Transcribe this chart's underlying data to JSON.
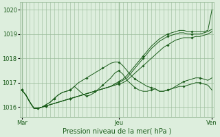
{
  "title": "Pression niveau de la mer( hPa )",
  "bg_color": "#ddeedd",
  "grid_color": "#99bb99",
  "line_color": "#1a5c1a",
  "tick_label_color": "#1a5c1a",
  "ylim": [
    1015.6,
    1020.3
  ],
  "yticks": [
    1016,
    1017,
    1018,
    1019,
    1020
  ],
  "xlabel_days": [
    "Mar",
    "Jeu",
    "Ven"
  ],
  "xlabel_xpos": [
    0.0,
    24.0,
    47.0
  ],
  "total_steps": 48,
  "series": {
    "s1": [
      1016.7,
      1016.5,
      1016.2,
      1015.95,
      1015.95,
      1016.0,
      1016.05,
      1016.1,
      1016.15,
      1016.2,
      1016.25,
      1016.3,
      1016.35,
      1016.4,
      1016.45,
      1016.5,
      1016.55,
      1016.6,
      1016.65,
      1016.7,
      1016.75,
      1016.8,
      1016.85,
      1016.95,
      1017.05,
      1017.15,
      1017.3,
      1017.5,
      1017.7,
      1017.9,
      1018.1,
      1018.3,
      1018.5,
      1018.65,
      1018.8,
      1018.9,
      1019.0,
      1019.05,
      1019.1,
      1019.15,
      1019.15,
      1019.1,
      1019.1,
      1019.1,
      1019.1,
      1019.1,
      1019.15,
      1020.0
    ],
    "s2": [
      1016.7,
      1016.5,
      1016.2,
      1015.95,
      1015.95,
      1016.0,
      1016.05,
      1016.1,
      1016.15,
      1016.2,
      1016.25,
      1016.3,
      1016.35,
      1016.4,
      1016.45,
      1016.5,
      1016.55,
      1016.6,
      1016.65,
      1016.7,
      1016.75,
      1016.8,
      1016.85,
      1016.95,
      1017.0,
      1017.1,
      1017.2,
      1017.4,
      1017.6,
      1017.8,
      1018.0,
      1018.2,
      1018.4,
      1018.55,
      1018.7,
      1018.8,
      1018.9,
      1018.95,
      1019.0,
      1019.05,
      1019.05,
      1019.0,
      1019.0,
      1019.0,
      1019.0,
      1019.05,
      1019.1,
      1019.2
    ],
    "s3": [
      1016.7,
      1016.5,
      1016.2,
      1015.95,
      1015.95,
      1016.0,
      1016.1,
      1016.2,
      1016.35,
      1016.5,
      1016.6,
      1016.65,
      1016.7,
      1016.85,
      1016.7,
      1016.55,
      1016.45,
      1016.5,
      1016.6,
      1016.75,
      1016.9,
      1017.05,
      1017.2,
      1017.4,
      1017.5,
      1017.35,
      1017.1,
      1016.95,
      1016.8,
      1016.7,
      1016.65,
      1016.65,
      1016.7,
      1016.75,
      1016.65,
      1016.65,
      1016.7,
      1016.75,
      1016.8,
      1016.85,
      1016.85,
      1016.9,
      1016.95,
      1017.0,
      1017.0,
      1016.95,
      1016.9,
      1016.7
    ],
    "s4": [
      1016.7,
      1016.5,
      1016.2,
      1015.95,
      1015.95,
      1016.0,
      1016.1,
      1016.2,
      1016.35,
      1016.5,
      1016.6,
      1016.65,
      1016.7,
      1016.85,
      1017.0,
      1017.1,
      1017.2,
      1017.3,
      1017.4,
      1017.5,
      1017.6,
      1017.7,
      1017.8,
      1017.85,
      1017.85,
      1017.7,
      1017.5,
      1017.3,
      1017.15,
      1017.05,
      1016.95,
      1016.85,
      1016.8,
      1016.75,
      1016.65,
      1016.65,
      1016.7,
      1016.75,
      1016.85,
      1016.95,
      1017.05,
      1017.1,
      1017.15,
      1017.2,
      1017.2,
      1017.15,
      1017.1,
      1017.2
    ],
    "s5": [
      1016.7,
      1016.5,
      1016.2,
      1015.95,
      1015.95,
      1016.0,
      1016.05,
      1016.1,
      1016.15,
      1016.2,
      1016.25,
      1016.3,
      1016.35,
      1016.4,
      1016.45,
      1016.5,
      1016.55,
      1016.6,
      1016.65,
      1016.7,
      1016.75,
      1016.8,
      1016.85,
      1016.9,
      1016.95,
      1017.0,
      1017.1,
      1017.25,
      1017.4,
      1017.55,
      1017.7,
      1017.85,
      1018.0,
      1018.15,
      1018.3,
      1018.45,
      1018.55,
      1018.65,
      1018.75,
      1018.8,
      1018.85,
      1018.85,
      1018.85,
      1018.9,
      1018.9,
      1018.95,
      1019.0,
      1019.1
    ]
  }
}
